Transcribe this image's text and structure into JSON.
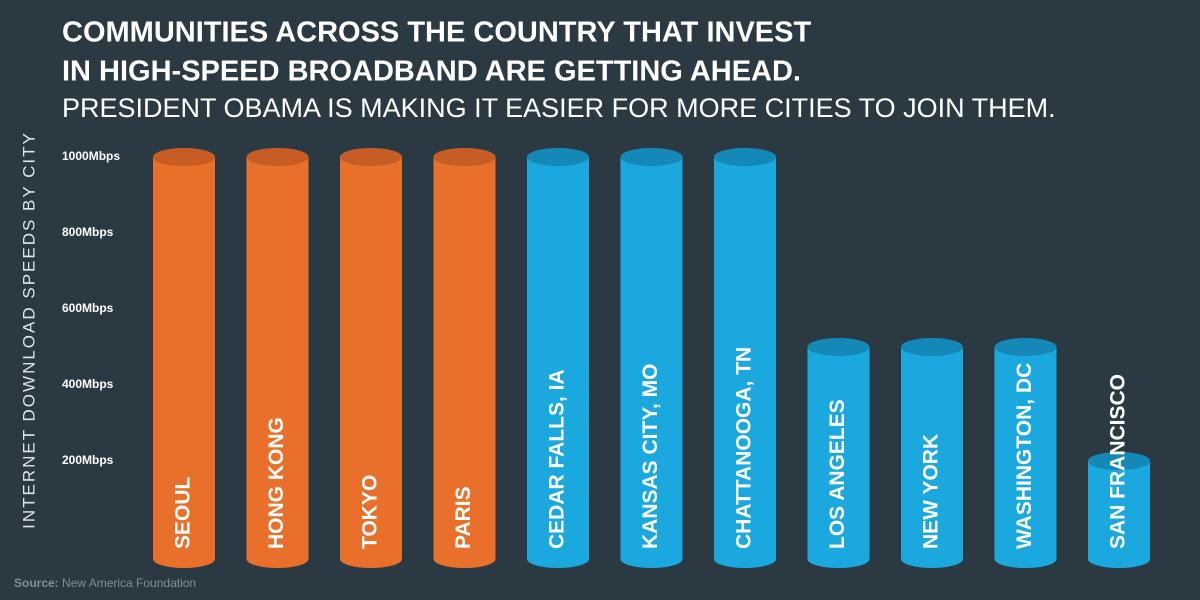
{
  "chart_data": {
    "type": "cylinder-bar",
    "title": [
      "COMMUNITIES ACROSS THE COUNTRY THAT INVEST",
      "IN HIGH-SPEED BROADBAND ARE GETTING AHEAD."
    ],
    "subtitle": "PRESIDENT OBAMA IS MAKING IT EASIER FOR MORE CITIES TO JOIN THEM.",
    "y_label": "INTERNET DOWNLOAD SPEEDS BY CITY",
    "categories": [
      "SEOUL",
      "HONG KONG",
      "TOKYO",
      "PARIS",
      "CEDAR FALLS, IA",
      "KANSAS CITY, MO",
      "CHATTANOOGA, TN",
      "LOS ANGELES",
      "NEW YORK",
      "WASHINGTON, DC",
      "SAN FRANCISCO"
    ],
    "values": [
      1000,
      1000,
      1000,
      1000,
      1000,
      1000,
      1000,
      500,
      500,
      500,
      200
    ],
    "colors": [
      "#e8702a",
      "#e8702a",
      "#e8702a",
      "#e8702a",
      "#1aa8de",
      "#1aa8de",
      "#1aa8de",
      "#1aa8de",
      "#1aa8de",
      "#1aa8de",
      "#1aa8de"
    ],
    "top_colors": [
      "#c75c24",
      "#c75c24",
      "#c75c24",
      "#c75c24",
      "#1489b8",
      "#1489b8",
      "#1489b8",
      "#1489b8",
      "#1489b8",
      "#1489b8",
      "#1489b8"
    ],
    "ylim": [
      0,
      1000
    ],
    "yticks": [
      {
        "value": 200,
        "label": "200Mbps"
      },
      {
        "value": 400,
        "label": "400Mbps"
      },
      {
        "value": 600,
        "label": "600Mbps"
      },
      {
        "value": 800,
        "label": "800Mbps"
      },
      {
        "value": 1000,
        "label": "1000Mbps"
      }
    ],
    "source": {
      "label": "Source:",
      "text": "New America Foundation"
    }
  }
}
